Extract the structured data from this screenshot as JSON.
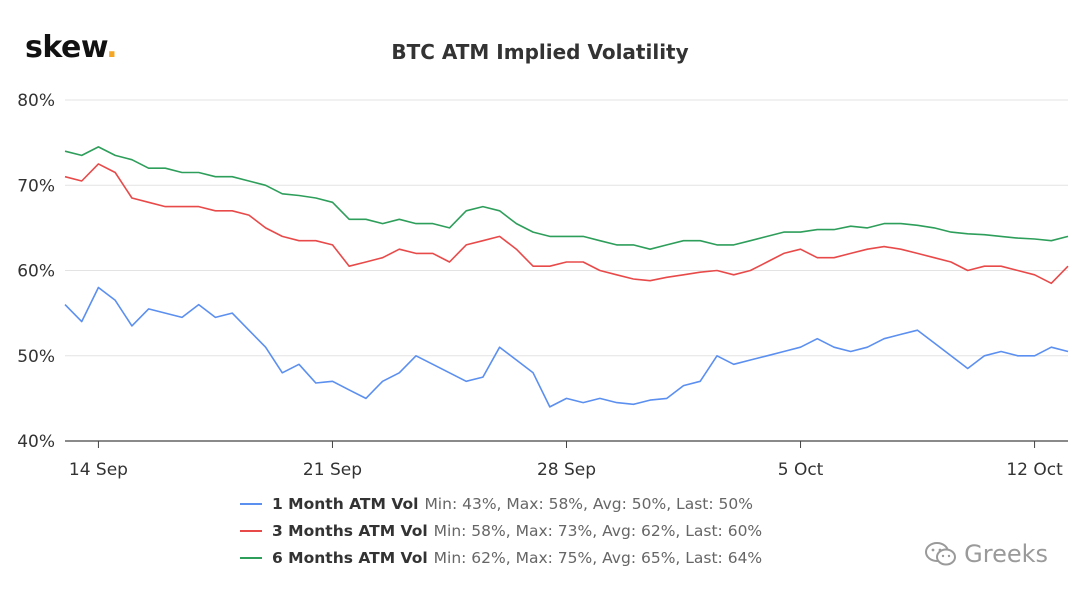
{
  "brand": {
    "logo_text": "skew",
    "logo_dot": ".",
    "dot_color": "#f5a623"
  },
  "watermark": {
    "text": "Greeks",
    "icon": "wechat-icon"
  },
  "chart_data": {
    "type": "line",
    "title": "BTC ATM Implied Volatility",
    "ylim": [
      40,
      80
    ],
    "y_ticks": [
      40,
      50,
      60,
      70,
      80
    ],
    "y_tick_labels": [
      "40%",
      "50%",
      "60%",
      "70%",
      "80%"
    ],
    "x_range": [
      "2020-09-13",
      "2020-10-13"
    ],
    "x_ticks": [
      "2020-09-14",
      "2020-09-21",
      "2020-09-28",
      "2020-10-05",
      "2020-10-12"
    ],
    "x_tick_labels": [
      "14 Sep",
      "21 Sep",
      "28 Sep",
      "5 Oct",
      "12 Oct"
    ],
    "grid": "horizontal",
    "legend_position": "bottom",
    "series": [
      {
        "name": "1 Month ATM Vol",
        "stats": "Min: 43%, Max: 58%, Avg: 50%, Last: 50%",
        "color": "#5b8ff0",
        "points": [
          [
            "2020-09-13",
            56.0
          ],
          [
            "2020-09-13T12:00",
            54.0
          ],
          [
            "2020-09-14",
            58.0
          ],
          [
            "2020-09-14T12:00",
            56.5
          ],
          [
            "2020-09-15",
            53.5
          ],
          [
            "2020-09-15T12:00",
            55.5
          ],
          [
            "2020-09-16",
            55.0
          ],
          [
            "2020-09-16T12:00",
            54.5
          ],
          [
            "2020-09-17",
            56.0
          ],
          [
            "2020-09-17T12:00",
            54.5
          ],
          [
            "2020-09-18",
            55.0
          ],
          [
            "2020-09-18T12:00",
            53.0
          ],
          [
            "2020-09-19",
            51.0
          ],
          [
            "2020-09-19T12:00",
            48.0
          ],
          [
            "2020-09-20",
            49.0
          ],
          [
            "2020-09-20T12:00",
            46.8
          ],
          [
            "2020-09-21",
            47.0
          ],
          [
            "2020-09-21T12:00",
            46.0
          ],
          [
            "2020-09-22",
            45.0
          ],
          [
            "2020-09-22T12:00",
            47.0
          ],
          [
            "2020-09-23",
            48.0
          ],
          [
            "2020-09-23T12:00",
            50.0
          ],
          [
            "2020-09-24",
            49.0
          ],
          [
            "2020-09-24T12:00",
            48.0
          ],
          [
            "2020-09-25",
            47.0
          ],
          [
            "2020-09-25T12:00",
            47.5
          ],
          [
            "2020-09-26",
            51.0
          ],
          [
            "2020-09-26T12:00",
            49.5
          ],
          [
            "2020-09-27",
            48.0
          ],
          [
            "2020-09-27T12:00",
            44.0
          ],
          [
            "2020-09-28",
            45.0
          ],
          [
            "2020-09-28T12:00",
            44.5
          ],
          [
            "2020-09-29",
            45.0
          ],
          [
            "2020-09-29T12:00",
            44.5
          ],
          [
            "2020-09-30",
            44.3
          ],
          [
            "2020-09-30T12:00",
            44.8
          ],
          [
            "2020-10-01",
            45.0
          ],
          [
            "2020-10-01T12:00",
            46.5
          ],
          [
            "2020-10-02",
            47.0
          ],
          [
            "2020-10-02T12:00",
            50.0
          ],
          [
            "2020-10-03",
            49.0
          ],
          [
            "2020-10-03T12:00",
            49.5
          ],
          [
            "2020-10-04",
            50.0
          ],
          [
            "2020-10-04T12:00",
            50.5
          ],
          [
            "2020-10-05",
            51.0
          ],
          [
            "2020-10-05T12:00",
            52.0
          ],
          [
            "2020-10-06",
            51.0
          ],
          [
            "2020-10-06T12:00",
            50.5
          ],
          [
            "2020-10-07",
            51.0
          ],
          [
            "2020-10-07T12:00",
            52.0
          ],
          [
            "2020-10-08",
            52.5
          ],
          [
            "2020-10-08T12:00",
            53.0
          ],
          [
            "2020-10-09",
            51.5
          ],
          [
            "2020-10-09T12:00",
            50.0
          ],
          [
            "2020-10-10",
            48.5
          ],
          [
            "2020-10-10T12:00",
            50.0
          ],
          [
            "2020-10-11",
            50.5
          ],
          [
            "2020-10-11T12:00",
            50.0
          ],
          [
            "2020-10-12",
            50.0
          ],
          [
            "2020-10-12T12:00",
            51.0
          ],
          [
            "2020-10-13",
            50.5
          ]
        ]
      },
      {
        "name": "3 Months ATM Vol",
        "stats": "Min: 58%, Max: 73%, Avg: 62%, Last: 60%",
        "color": "#e84a4a",
        "points": [
          [
            "2020-09-13",
            71.0
          ],
          [
            "2020-09-13T12:00",
            70.5
          ],
          [
            "2020-09-14",
            72.5
          ],
          [
            "2020-09-14T12:00",
            71.5
          ],
          [
            "2020-09-15",
            68.5
          ],
          [
            "2020-09-15T12:00",
            68.0
          ],
          [
            "2020-09-16",
            67.5
          ],
          [
            "2020-09-16T12:00",
            67.5
          ],
          [
            "2020-09-17",
            67.5
          ],
          [
            "2020-09-17T12:00",
            67.0
          ],
          [
            "2020-09-18",
            67.0
          ],
          [
            "2020-09-18T12:00",
            66.5
          ],
          [
            "2020-09-19",
            65.0
          ],
          [
            "2020-09-19T12:00",
            64.0
          ],
          [
            "2020-09-20",
            63.5
          ],
          [
            "2020-09-20T12:00",
            63.5
          ],
          [
            "2020-09-21",
            63.0
          ],
          [
            "2020-09-21T12:00",
            60.5
          ],
          [
            "2020-09-22",
            61.0
          ],
          [
            "2020-09-22T12:00",
            61.5
          ],
          [
            "2020-09-23",
            62.5
          ],
          [
            "2020-09-23T12:00",
            62.0
          ],
          [
            "2020-09-24",
            62.0
          ],
          [
            "2020-09-24T12:00",
            61.0
          ],
          [
            "2020-09-25",
            63.0
          ],
          [
            "2020-09-25T12:00",
            63.5
          ],
          [
            "2020-09-26",
            64.0
          ],
          [
            "2020-09-26T12:00",
            62.5
          ],
          [
            "2020-09-27",
            60.5
          ],
          [
            "2020-09-27T12:00",
            60.5
          ],
          [
            "2020-09-28",
            61.0
          ],
          [
            "2020-09-28T12:00",
            61.0
          ],
          [
            "2020-09-29",
            60.0
          ],
          [
            "2020-09-29T12:00",
            59.5
          ],
          [
            "2020-09-30",
            59.0
          ],
          [
            "2020-09-30T12:00",
            58.8
          ],
          [
            "2020-10-01",
            59.2
          ],
          [
            "2020-10-01T12:00",
            59.5
          ],
          [
            "2020-10-02",
            59.8
          ],
          [
            "2020-10-02T12:00",
            60.0
          ],
          [
            "2020-10-03",
            59.5
          ],
          [
            "2020-10-03T12:00",
            60.0
          ],
          [
            "2020-10-04",
            61.0
          ],
          [
            "2020-10-04T12:00",
            62.0
          ],
          [
            "2020-10-05",
            62.5
          ],
          [
            "2020-10-05T12:00",
            61.5
          ],
          [
            "2020-10-06",
            61.5
          ],
          [
            "2020-10-06T12:00",
            62.0
          ],
          [
            "2020-10-07",
            62.5
          ],
          [
            "2020-10-07T12:00",
            62.8
          ],
          [
            "2020-10-08",
            62.5
          ],
          [
            "2020-10-08T12:00",
            62.0
          ],
          [
            "2020-10-09",
            61.5
          ],
          [
            "2020-10-09T12:00",
            61.0
          ],
          [
            "2020-10-10",
            60.0
          ],
          [
            "2020-10-10T12:00",
            60.5
          ],
          [
            "2020-10-11",
            60.5
          ],
          [
            "2020-10-11T12:00",
            60.0
          ],
          [
            "2020-10-12",
            59.5
          ],
          [
            "2020-10-12T12:00",
            58.5
          ],
          [
            "2020-10-13",
            60.5
          ]
        ]
      },
      {
        "name": "6 Months ATM Vol",
        "stats": "Min: 62%, Max: 75%, Avg: 65%, Last: 64%",
        "color": "#2e9e5b",
        "points": [
          [
            "2020-09-13",
            74.0
          ],
          [
            "2020-09-13T12:00",
            73.5
          ],
          [
            "2020-09-14",
            74.5
          ],
          [
            "2020-09-14T12:00",
            73.5
          ],
          [
            "2020-09-15",
            73.0
          ],
          [
            "2020-09-15T12:00",
            72.0
          ],
          [
            "2020-09-16",
            72.0
          ],
          [
            "2020-09-16T12:00",
            71.5
          ],
          [
            "2020-09-17",
            71.5
          ],
          [
            "2020-09-17T12:00",
            71.0
          ],
          [
            "2020-09-18",
            71.0
          ],
          [
            "2020-09-18T12:00",
            70.5
          ],
          [
            "2020-09-19",
            70.0
          ],
          [
            "2020-09-19T12:00",
            69.0
          ],
          [
            "2020-09-20",
            68.8
          ],
          [
            "2020-09-20T12:00",
            68.5
          ],
          [
            "2020-09-21",
            68.0
          ],
          [
            "2020-09-21T12:00",
            66.0
          ],
          [
            "2020-09-22",
            66.0
          ],
          [
            "2020-09-22T12:00",
            65.5
          ],
          [
            "2020-09-23",
            66.0
          ],
          [
            "2020-09-23T12:00",
            65.5
          ],
          [
            "2020-09-24",
            65.5
          ],
          [
            "2020-09-24T12:00",
            65.0
          ],
          [
            "2020-09-25",
            67.0
          ],
          [
            "2020-09-25T12:00",
            67.5
          ],
          [
            "2020-09-26",
            67.0
          ],
          [
            "2020-09-26T12:00",
            65.5
          ],
          [
            "2020-09-27",
            64.5
          ],
          [
            "2020-09-27T12:00",
            64.0
          ],
          [
            "2020-09-28",
            64.0
          ],
          [
            "2020-09-28T12:00",
            64.0
          ],
          [
            "2020-09-29",
            63.5
          ],
          [
            "2020-09-29T12:00",
            63.0
          ],
          [
            "2020-09-30",
            63.0
          ],
          [
            "2020-09-30T12:00",
            62.5
          ],
          [
            "2020-10-01",
            63.0
          ],
          [
            "2020-10-01T12:00",
            63.5
          ],
          [
            "2020-10-02",
            63.5
          ],
          [
            "2020-10-02T12:00",
            63.0
          ],
          [
            "2020-10-03",
            63.0
          ],
          [
            "2020-10-03T12:00",
            63.5
          ],
          [
            "2020-10-04",
            64.0
          ],
          [
            "2020-10-04T12:00",
            64.5
          ],
          [
            "2020-10-05",
            64.5
          ],
          [
            "2020-10-05T12:00",
            64.8
          ],
          [
            "2020-10-06",
            64.8
          ],
          [
            "2020-10-06T12:00",
            65.2
          ],
          [
            "2020-10-07",
            65.0
          ],
          [
            "2020-10-07T12:00",
            65.5
          ],
          [
            "2020-10-08",
            65.5
          ],
          [
            "2020-10-08T12:00",
            65.3
          ],
          [
            "2020-10-09",
            65.0
          ],
          [
            "2020-10-09T12:00",
            64.5
          ],
          [
            "2020-10-10",
            64.3
          ],
          [
            "2020-10-10T12:00",
            64.2
          ],
          [
            "2020-10-11",
            64.0
          ],
          [
            "2020-10-11T12:00",
            63.8
          ],
          [
            "2020-10-12",
            63.7
          ],
          [
            "2020-10-12T12:00",
            63.5
          ],
          [
            "2020-10-13",
            64.0
          ]
        ]
      }
    ]
  }
}
